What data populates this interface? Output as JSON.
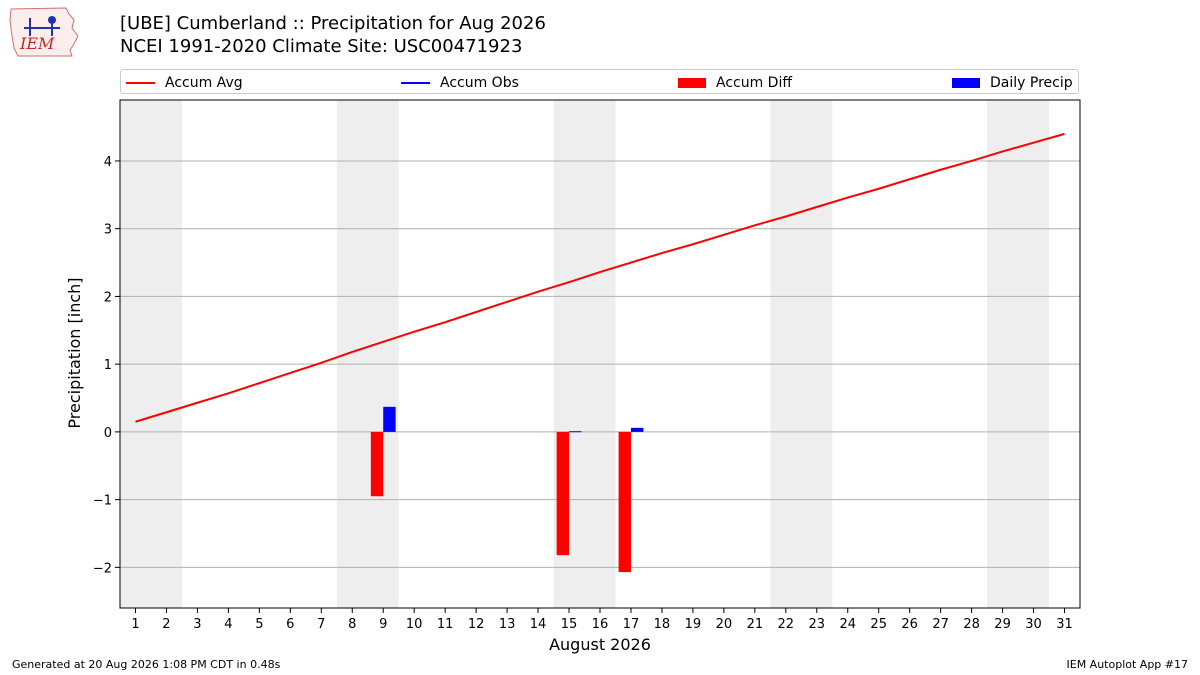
{
  "header": {
    "title_line1": "[UBE] Cumberland :: Precipitation for Aug 2026",
    "title_line2": "NCEI 1991-2020 Climate Site: USC00471923",
    "logo_text": "IEM"
  },
  "footer": {
    "generated": "Generated at 20 Aug 2026 1:08 PM CDT in 0.48s",
    "app": "IEM Autoplot App #17"
  },
  "colors": {
    "accum_avg": "#ff0000",
    "accum_obs": "#0000ff",
    "accum_diff": "#ff0000",
    "daily_precip": "#0000ff",
    "weekend_band": "#eeeeee",
    "grid": "#b0b0b0"
  },
  "chart_data": {
    "type": "bar",
    "title": "[UBE] Cumberland :: Precipitation for Aug 2026",
    "xlabel": "August 2026",
    "ylabel": "Precipitation [inch]",
    "x": [
      1,
      2,
      3,
      4,
      5,
      6,
      7,
      8,
      9,
      10,
      11,
      12,
      13,
      14,
      15,
      16,
      17,
      18,
      19,
      20,
      21,
      22,
      23,
      24,
      25,
      26,
      27,
      28,
      29,
      30,
      31
    ],
    "xlim": [
      0.5,
      31.5
    ],
    "ylim": [
      -2.6,
      4.9
    ],
    "yticks": [
      -2,
      -1,
      0,
      1,
      2,
      3,
      4
    ],
    "ytick_labels": [
      "−2",
      "−1",
      "0",
      "1",
      "2",
      "3",
      "4"
    ],
    "grid": "horizontal",
    "legend_position": "top",
    "legend": [
      {
        "label": "Accum Avg",
        "kind": "line",
        "color": "#ff0000"
      },
      {
        "label": "Accum Obs",
        "kind": "line",
        "color": "#0000ff"
      },
      {
        "label": "Accum Diff",
        "kind": "patch",
        "color": "#ff0000"
      },
      {
        "label": "Daily Precip",
        "kind": "patch",
        "color": "#0000ff"
      }
    ],
    "weekend_bands": [
      [
        0.5,
        2.5
      ],
      [
        7.5,
        9.5
      ],
      [
        14.5,
        16.5
      ],
      [
        21.5,
        23.5
      ],
      [
        28.5,
        30.5
      ]
    ],
    "series": [
      {
        "name": "Accum Avg",
        "type": "line",
        "color": "#ff0000",
        "values": [
          0.15,
          0.29,
          0.43,
          0.57,
          0.72,
          0.87,
          1.02,
          1.18,
          1.33,
          1.48,
          1.62,
          1.77,
          1.92,
          2.07,
          2.21,
          2.36,
          2.5,
          2.64,
          2.77,
          2.91,
          3.05,
          3.18,
          3.32,
          3.46,
          3.59,
          3.73,
          3.87,
          4.0,
          4.14,
          4.27,
          4.4
        ]
      },
      {
        "name": "Accum Diff",
        "type": "bar",
        "color": "#ff0000",
        "points": [
          [
            9,
            -0.95
          ],
          [
            15,
            -1.82
          ],
          [
            17,
            -2.07
          ]
        ]
      },
      {
        "name": "Daily Precip",
        "type": "bar",
        "color": "#0000ff",
        "points": [
          [
            9,
            0.37
          ],
          [
            15,
            0.01
          ],
          [
            17,
            0.06
          ]
        ]
      }
    ]
  }
}
